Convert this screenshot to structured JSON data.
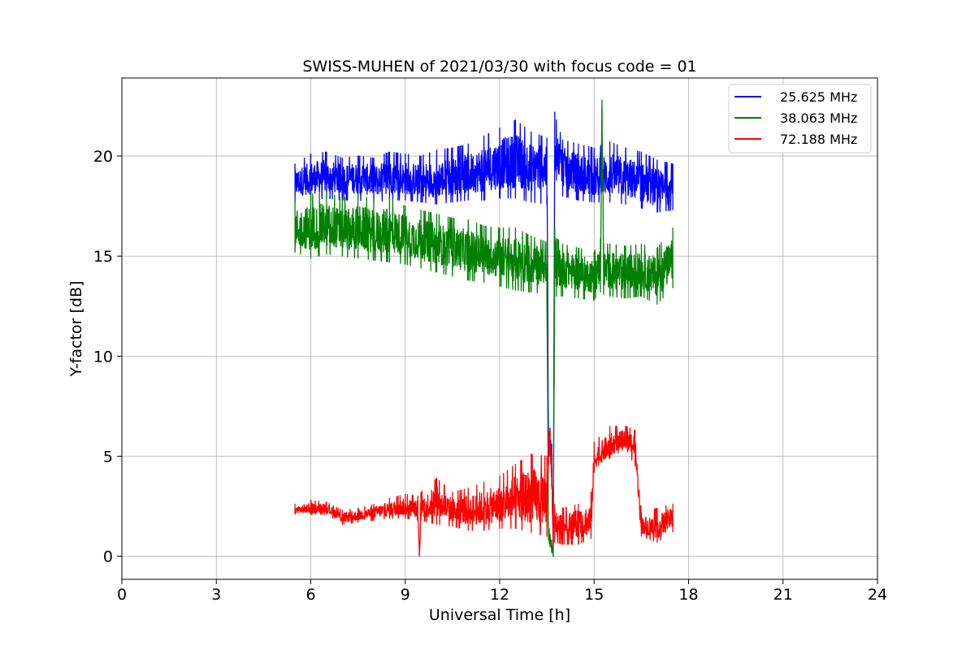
{
  "chart_data": {
    "type": "line",
    "title": "SWISS-MUHEN of 2021/03/30 with focus code = 01",
    "xlabel": "Universal Time [h]",
    "ylabel": "Y-factor [dB]",
    "xlim": [
      0,
      24
    ],
    "ylim": [
      -1.15,
      23.9
    ],
    "xticks": [
      0,
      3,
      6,
      9,
      12,
      15,
      18,
      21,
      24
    ],
    "yticks": [
      0,
      5,
      10,
      15,
      20
    ],
    "grid": true,
    "legend_position": "top-right",
    "series": [
      {
        "name": "25.625 MHz",
        "color": "#0000ff",
        "x": [
          5.5,
          6.0,
          6.5,
          7.0,
          7.5,
          8.0,
          8.5,
          9.0,
          9.5,
          10.0,
          10.5,
          11.0,
          11.5,
          12.0,
          12.5,
          13.0,
          13.5,
          13.55,
          13.6,
          13.65,
          13.7,
          13.75,
          13.8,
          14.0,
          14.5,
          15.0,
          15.5,
          16.0,
          16.5,
          17.0,
          17.5
        ],
        "y": [
          18.6,
          18.8,
          18.9,
          18.8,
          18.9,
          18.7,
          18.9,
          18.8,
          18.7,
          18.7,
          18.8,
          19.0,
          19.2,
          19.5,
          19.6,
          19.5,
          19.4,
          5.5,
          6.2,
          5.0,
          0.2,
          20.5,
          20.0,
          19.6,
          19.0,
          18.7,
          18.9,
          18.8,
          18.5,
          18.2,
          18.3
        ],
        "y_low": [
          17.7,
          17.8,
          17.9,
          17.8,
          17.8,
          17.7,
          17.8,
          17.8,
          17.7,
          17.6,
          17.7,
          17.8,
          17.8,
          17.9,
          17.9,
          17.7,
          17.6,
          5.0,
          5.4,
          4.3,
          0.0,
          19.2,
          18.8,
          18.0,
          17.8,
          17.7,
          17.7,
          17.6,
          17.4,
          17.2,
          17.3
        ],
        "y_high": [
          19.6,
          20.1,
          20.2,
          19.9,
          20.0,
          19.9,
          20.2,
          20.1,
          20.0,
          20.3,
          20.4,
          20.6,
          21.0,
          21.4,
          21.8,
          21.2,
          20.9,
          6.1,
          6.4,
          5.6,
          0.4,
          22.2,
          21.8,
          20.8,
          20.6,
          20.4,
          20.7,
          20.4,
          20.2,
          19.8,
          19.6
        ]
      },
      {
        "name": "38.063 MHz",
        "color": "#008000",
        "x": [
          5.5,
          6.0,
          6.5,
          7.0,
          7.5,
          8.0,
          8.5,
          9.0,
          9.5,
          10.0,
          10.5,
          11.0,
          11.5,
          12.0,
          12.5,
          13.0,
          13.5,
          13.55,
          13.6,
          13.65,
          13.7,
          13.75,
          13.8,
          14.0,
          14.5,
          15.0,
          15.2,
          15.25,
          15.3,
          15.5,
          16.0,
          16.5,
          17.0,
          17.5
        ],
        "y": [
          16.3,
          16.2,
          16.4,
          16.1,
          16.3,
          16.0,
          16.2,
          16.0,
          15.7,
          15.6,
          15.4,
          15.2,
          15.0,
          14.9,
          14.8,
          14.6,
          14.5,
          1.2,
          0.8,
          0.4,
          0.2,
          15.0,
          14.5,
          14.4,
          14.2,
          14.0,
          14.5,
          22.8,
          14.3,
          14.2,
          14.1,
          14.2,
          14.0,
          14.6
        ],
        "y_low": [
          15.2,
          14.9,
          15.1,
          15.0,
          14.9,
          14.8,
          14.7,
          14.6,
          14.4,
          14.2,
          14.0,
          13.8,
          13.7,
          13.5,
          13.3,
          13.2,
          13.1,
          0.8,
          0.5,
          0.2,
          0.0,
          13.5,
          13.0,
          13.0,
          12.9,
          12.8,
          13.2,
          20.0,
          13.1,
          13.0,
          12.9,
          13.0,
          12.6,
          13.4
        ],
        "y_high": [
          17.8,
          18.1,
          18.2,
          17.9,
          18.1,
          17.8,
          17.9,
          17.5,
          17.3,
          17.1,
          16.9,
          16.8,
          16.5,
          16.4,
          16.4,
          16.0,
          15.7,
          1.6,
          1.1,
          0.8,
          0.4,
          16.4,
          15.9,
          15.6,
          15.4,
          15.2,
          15.9,
          22.8,
          15.6,
          15.6,
          15.5,
          15.6,
          15.4,
          16.4
        ]
      },
      {
        "name": "72.188 MHz",
        "color": "#ff0000",
        "x": [
          5.5,
          6.0,
          6.5,
          7.0,
          7.5,
          8.0,
          8.5,
          9.0,
          9.4,
          9.45,
          9.5,
          10.0,
          10.5,
          11.0,
          11.5,
          12.0,
          12.5,
          13.0,
          13.5,
          13.55,
          13.6,
          13.65,
          13.7,
          13.75,
          14.0,
          14.5,
          14.9,
          15.0,
          15.5,
          16.0,
          16.3,
          16.5,
          17.0,
          17.5
        ],
        "y": [
          2.3,
          2.3,
          2.4,
          1.9,
          2.0,
          2.2,
          2.3,
          2.4,
          2.3,
          0.0,
          2.4,
          2.6,
          2.2,
          2.2,
          2.3,
          2.4,
          2.6,
          2.8,
          2.6,
          5.2,
          5.6,
          4.0,
          1.4,
          1.6,
          1.5,
          1.6,
          1.6,
          4.8,
          5.3,
          5.8,
          5.5,
          1.5,
          1.3,
          2.0
        ],
        "y_low": [
          2.1,
          2.1,
          2.1,
          1.6,
          1.7,
          1.8,
          1.9,
          1.9,
          1.8,
          0.0,
          1.8,
          1.6,
          1.5,
          1.3,
          1.3,
          1.4,
          1.4,
          1.2,
          1.0,
          4.6,
          5.0,
          3.5,
          0.5,
          0.7,
          0.6,
          0.6,
          0.9,
          4.2,
          4.9,
          5.4,
          4.5,
          1.0,
          0.7,
          1.2
        ],
        "y_high": [
          2.6,
          2.8,
          2.7,
          2.3,
          2.4,
          2.6,
          2.9,
          3.1,
          3.0,
          0.0,
          3.2,
          3.9,
          3.2,
          3.4,
          3.7,
          4.0,
          4.6,
          5.1,
          5.0,
          6.2,
          6.3,
          4.8,
          2.4,
          2.6,
          2.4,
          2.6,
          3.2,
          5.7,
          6.5,
          6.5,
          6.3,
          2.2,
          2.4,
          2.6
        ]
      }
    ]
  }
}
